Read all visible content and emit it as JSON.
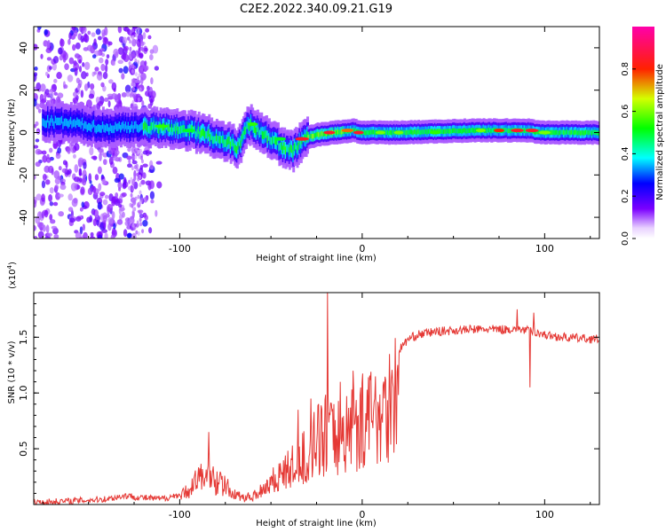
{
  "title": "C2E2.2022.340.09.21.G19",
  "chart_data": [
    {
      "type": "heatmap",
      "name": "spectrogram",
      "xlabel": "Height of straight line (km)",
      "ylabel": "Frequency (Hz)",
      "xlim": [
        -180,
        130
      ],
      "ylim": [
        -50,
        50
      ],
      "xticks": [
        -100,
        0,
        100
      ],
      "yticks": [
        -40,
        -20,
        0,
        20,
        40
      ],
      "ridge": {
        "x": [
          -170,
          -155,
          -140,
          -125,
          -110,
          -95,
          -85,
          -75,
          -68,
          -62,
          -55,
          -45,
          -38,
          -32,
          -25,
          -15,
          -5,
          0,
          20,
          60,
          80,
          90,
          100,
          130
        ],
        "freq": [
          5,
          4,
          2,
          3,
          2,
          1,
          -1,
          -4,
          -7,
          4,
          0,
          -6,
          -9,
          -3,
          -1,
          0,
          1,
          0,
          0,
          1,
          1,
          1,
          0,
          0
        ]
      },
      "colorbar": {
        "label": "Normalized spectral amplitude",
        "ticks": [
          0.0,
          0.2,
          0.4,
          0.6,
          0.8
        ],
        "tick_labels": [
          "0.0",
          "0.2",
          "0.4",
          "0.6",
          "0.8"
        ],
        "range": [
          0,
          1
        ]
      }
    },
    {
      "type": "line",
      "name": "snr",
      "xlabel": "Height of straight line (km)",
      "ylabel": "SNR (10 * v/v)",
      "multiplier_label": "(x10",
      "multiplier_exp": "4",
      "multiplier_close": ")",
      "xlim": [
        -180,
        130
      ],
      "ylim": [
        0,
        1.9
      ],
      "xticks": [
        -100,
        0,
        100
      ],
      "yticks": [
        0.5,
        1.0,
        1.5
      ],
      "ytick_labels": [
        "0.5",
        "1.0",
        "1.5"
      ],
      "color": "#e53935",
      "x": [
        -180,
        -160,
        -140,
        -130,
        -120,
        -110,
        -100,
        -95,
        -90,
        -85,
        -80,
        -75,
        -70,
        -65,
        -60,
        -55,
        -50,
        -45,
        -40,
        -35,
        -30,
        -25,
        -20,
        -15,
        -10,
        -5,
        0,
        5,
        10,
        15,
        20,
        25,
        30,
        40,
        50,
        60,
        70,
        80,
        85,
        90,
        95,
        100,
        110,
        120,
        130
      ],
      "y": [
        0.02,
        0.03,
        0.05,
        0.08,
        0.06,
        0.05,
        0.09,
        0.18,
        0.3,
        0.35,
        0.28,
        0.22,
        0.12,
        0.08,
        0.1,
        0.18,
        0.28,
        0.35,
        0.42,
        0.48,
        0.6,
        0.75,
        0.85,
        0.8,
        0.85,
        0.95,
        1.0,
        1.05,
        1.15,
        1.25,
        1.38,
        1.48,
        1.52,
        1.55,
        1.56,
        1.57,
        1.57,
        1.57,
        1.58,
        1.56,
        1.55,
        1.52,
        1.5,
        1.49,
        1.48
      ],
      "spikes": [
        {
          "x": -19,
          "y": 1.9
        },
        {
          "x": -84,
          "y": 0.65
        },
        {
          "x": -35,
          "y": 0.85
        },
        {
          "x": -28,
          "y": 0.95
        },
        {
          "x": -12,
          "y": 1.1
        },
        {
          "x": -5,
          "y": 1.2
        },
        {
          "x": 85,
          "y": 1.75
        },
        {
          "x": 92,
          "y": 1.05
        },
        {
          "x": 94,
          "y": 1.72
        }
      ]
    }
  ]
}
